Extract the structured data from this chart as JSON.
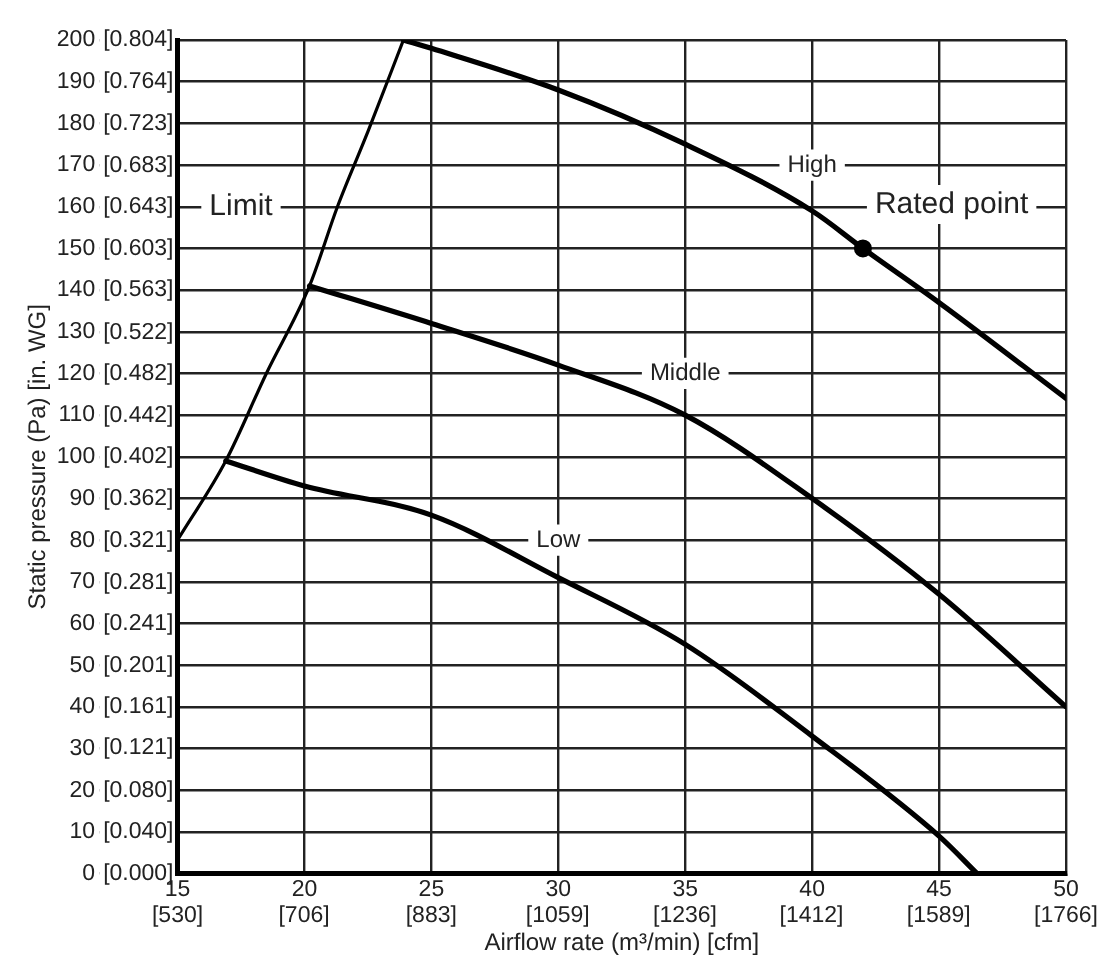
{
  "chart_data": {
    "type": "line",
    "xlabel": "Airflow rate (m³/min) [cfm]",
    "ylabel": "Static pressure (Pa) [in. WG]",
    "xlim": [
      15,
      50
    ],
    "ylim": [
      0,
      200
    ],
    "xticks": [
      15,
      20,
      25,
      30,
      35,
      40,
      45,
      50
    ],
    "yticks": [
      0,
      10,
      20,
      30,
      40,
      50,
      60,
      70,
      80,
      90,
      100,
      110,
      120,
      130,
      140,
      150,
      160,
      170,
      180,
      190,
      200
    ],
    "x2lim": [
      530,
      1766
    ],
    "x2ticks": [
      {
        "value": 530,
        "label": "[530]"
      },
      {
        "value": 706,
        "label": "[706]"
      },
      {
        "value": 883,
        "label": "[883]"
      },
      {
        "value": 1059,
        "label": "[1059]"
      },
      {
        "value": 1236,
        "label": "[1236]"
      },
      {
        "value": 1412,
        "label": "[1412]"
      },
      {
        "value": 1589,
        "label": "[1589]"
      },
      {
        "value": 1766,
        "label": "[1766]"
      }
    ],
    "y2lim": [
      0,
      0.804
    ],
    "y2ticks": [
      {
        "value": 0,
        "label": "[0.000]"
      },
      {
        "value": 0.04,
        "label": "[0.040]"
      },
      {
        "value": 0.08,
        "label": "[0.080]"
      },
      {
        "value": 0.121,
        "label": "[0.121]"
      },
      {
        "value": 0.161,
        "label": "[0.161]"
      },
      {
        "value": 0.201,
        "label": "[0.201]"
      },
      {
        "value": 0.241,
        "label": "[0.241]"
      },
      {
        "value": 0.281,
        "label": "[0.281]"
      },
      {
        "value": 0.321,
        "label": "[0.321]"
      },
      {
        "value": 0.362,
        "label": "[0.362]"
      },
      {
        "value": 0.402,
        "label": "[0.402]"
      },
      {
        "value": 0.442,
        "label": "[0.442]"
      },
      {
        "value": 0.482,
        "label": "[0.482]"
      },
      {
        "value": 0.522,
        "label": "[0.522]"
      },
      {
        "value": 0.563,
        "label": "[0.563]"
      },
      {
        "value": 0.603,
        "label": "[0.603]"
      },
      {
        "value": 0.643,
        "label": "[0.643]"
      },
      {
        "value": 0.683,
        "label": "[0.683]"
      },
      {
        "value": 0.723,
        "label": "[0.723]"
      },
      {
        "value": 0.764,
        "label": "[0.764]"
      },
      {
        "value": 0.804,
        "label": "[0.804]"
      }
    ],
    "grid": true,
    "marker": "none",
    "line_style": "solid",
    "series": [
      {
        "name": "Limit",
        "color": "#000000",
        "x": [
          15,
          16.9,
          18.5,
          20.2,
          21.3,
          22.5,
          23.9
        ],
        "values": [
          80,
          99,
          120,
          141,
          160,
          178,
          200
        ]
      },
      {
        "name": "High",
        "color": "#000000",
        "x": [
          23.9,
          25,
          30,
          35,
          40,
          42,
          45,
          50
        ],
        "values": [
          200,
          198,
          188,
          175,
          159,
          150,
          137,
          114
        ]
      },
      {
        "name": "Middle",
        "color": "#000000",
        "x": [
          20.2,
          25,
          30,
          35,
          40,
          45,
          50
        ],
        "values": [
          141,
          132,
          122,
          110,
          90,
          67,
          40
        ]
      },
      {
        "name": "Low",
        "color": "#000000",
        "x": [
          16.9,
          20,
          25,
          30,
          35,
          40,
          45,
          46.5
        ],
        "values": [
          99,
          93,
          86,
          71,
          55,
          33,
          9,
          0
        ]
      },
      {
        "name": "Rated point",
        "type": "scatter",
        "marker": "circle",
        "color": "#000000",
        "x": [
          42
        ],
        "values": [
          150
        ]
      }
    ]
  }
}
